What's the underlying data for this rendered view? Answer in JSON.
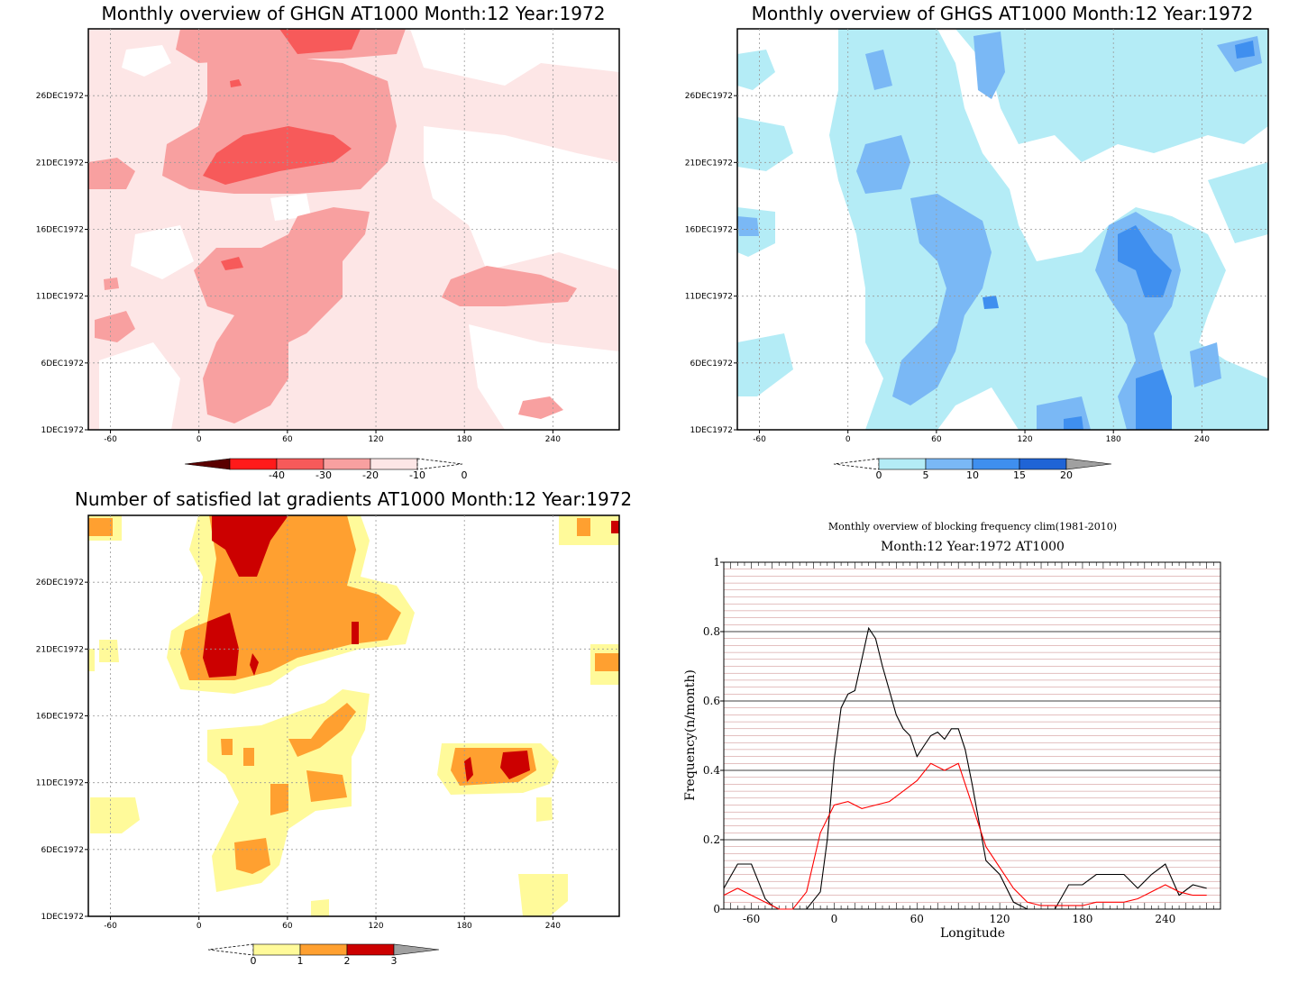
{
  "panels": {
    "p1": {
      "title": "Monthly overview of GHGN AT1000 Month:12 Year:1972",
      "colorbar": [
        "-40",
        "-30",
        "-20",
        "-10",
        "0"
      ],
      "colors": [
        "#5a0000",
        "#ff1a1a",
        "#f75a5a",
        "#f8a0a0",
        "#fde6e6"
      ]
    },
    "p2": {
      "title": "Monthly overview of GHGS AT1000 Month:12 Year:1972",
      "colorbar": [
        "0",
        "5",
        "10",
        "15",
        "20"
      ],
      "colors": [
        "#b4ecf6",
        "#7ab8f5",
        "#3f8fef",
        "#1f64d6",
        "#a0a0a0"
      ]
    },
    "p3": {
      "title": "Number of satisfied lat gradients AT1000 Month:12 Year:1972",
      "colorbar": [
        "0",
        "1",
        "2",
        "3"
      ],
      "colors": [
        "#fffa9a",
        "#ffa030",
        "#cc0000",
        "#a0a0a0"
      ]
    },
    "p4": {
      "title": "Monthly overview of blocking frequency clim(1981-2010)",
      "subtitle": "Month:12 Year:1972  AT1000"
    }
  },
  "hov_y_ticks": [
    "1DEC1972",
    "6DEC1972",
    "11DEC1972",
    "16DEC1972",
    "21DEC1972",
    "26DEC1972"
  ],
  "hov_x_ticks": [
    "-60",
    "0",
    "60",
    "120",
    "180",
    "240"
  ],
  "chart_data": [
    {
      "type": "line",
      "title": "Monthly overview of blocking frequency clim(1981-2010)",
      "subtitle": "Month:12 Year:1972  AT1000",
      "xlabel": "Longitude",
      "ylabel": "Frequency(n/month)",
      "xlim": [
        -80,
        280
      ],
      "ylim": [
        0,
        1
      ],
      "x_ticks": [
        "-60",
        "0",
        "60",
        "120",
        "180",
        "240"
      ],
      "y_ticks": [
        "0",
        "0.2",
        "0.4",
        "0.6",
        "0.8",
        "1"
      ],
      "grid": true,
      "series": [
        {
          "color": "#000000",
          "x": [
            -80,
            -70,
            -60,
            -55,
            -50,
            -45,
            -40,
            -30,
            -20,
            -10,
            -5,
            0,
            5,
            10,
            15,
            20,
            25,
            30,
            35,
            40,
            45,
            50,
            55,
            60,
            65,
            70,
            75,
            80,
            85,
            90,
            95,
            100,
            105,
            110,
            115,
            120,
            130,
            140,
            150,
            160,
            170,
            180,
            190,
            200,
            210,
            220,
            230,
            240,
            250,
            260,
            270
          ],
          "y": [
            0.06,
            0.13,
            0.13,
            0.08,
            0.03,
            0.01,
            0.0,
            0.0,
            0.0,
            0.05,
            0.2,
            0.43,
            0.58,
            0.62,
            0.63,
            0.72,
            0.81,
            0.78,
            0.7,
            0.63,
            0.56,
            0.52,
            0.5,
            0.44,
            0.47,
            0.5,
            0.51,
            0.49,
            0.52,
            0.52,
            0.46,
            0.36,
            0.25,
            0.14,
            0.12,
            0.1,
            0.02,
            0.0,
            0.0,
            0.0,
            0.07,
            0.07,
            0.1,
            0.1,
            0.1,
            0.06,
            0.1,
            0.13,
            0.04,
            0.07,
            0.06
          ]
        },
        {
          "color": "#ff0000",
          "x": [
            -80,
            -70,
            -60,
            -50,
            -40,
            -30,
            -20,
            -10,
            0,
            10,
            20,
            30,
            40,
            50,
            60,
            70,
            80,
            90,
            100,
            110,
            120,
            130,
            140,
            150,
            160,
            170,
            180,
            190,
            200,
            210,
            220,
            230,
            240,
            250,
            260,
            270
          ],
          "y": [
            0.04,
            0.06,
            0.04,
            0.02,
            0.0,
            0.0,
            0.05,
            0.22,
            0.3,
            0.31,
            0.29,
            0.3,
            0.31,
            0.34,
            0.37,
            0.42,
            0.4,
            0.42,
            0.3,
            0.18,
            0.12,
            0.06,
            0.02,
            0.01,
            0.01,
            0.01,
            0.01,
            0.02,
            0.02,
            0.02,
            0.03,
            0.05,
            0.07,
            0.05,
            0.04,
            0.04
          ]
        }
      ]
    }
  ]
}
